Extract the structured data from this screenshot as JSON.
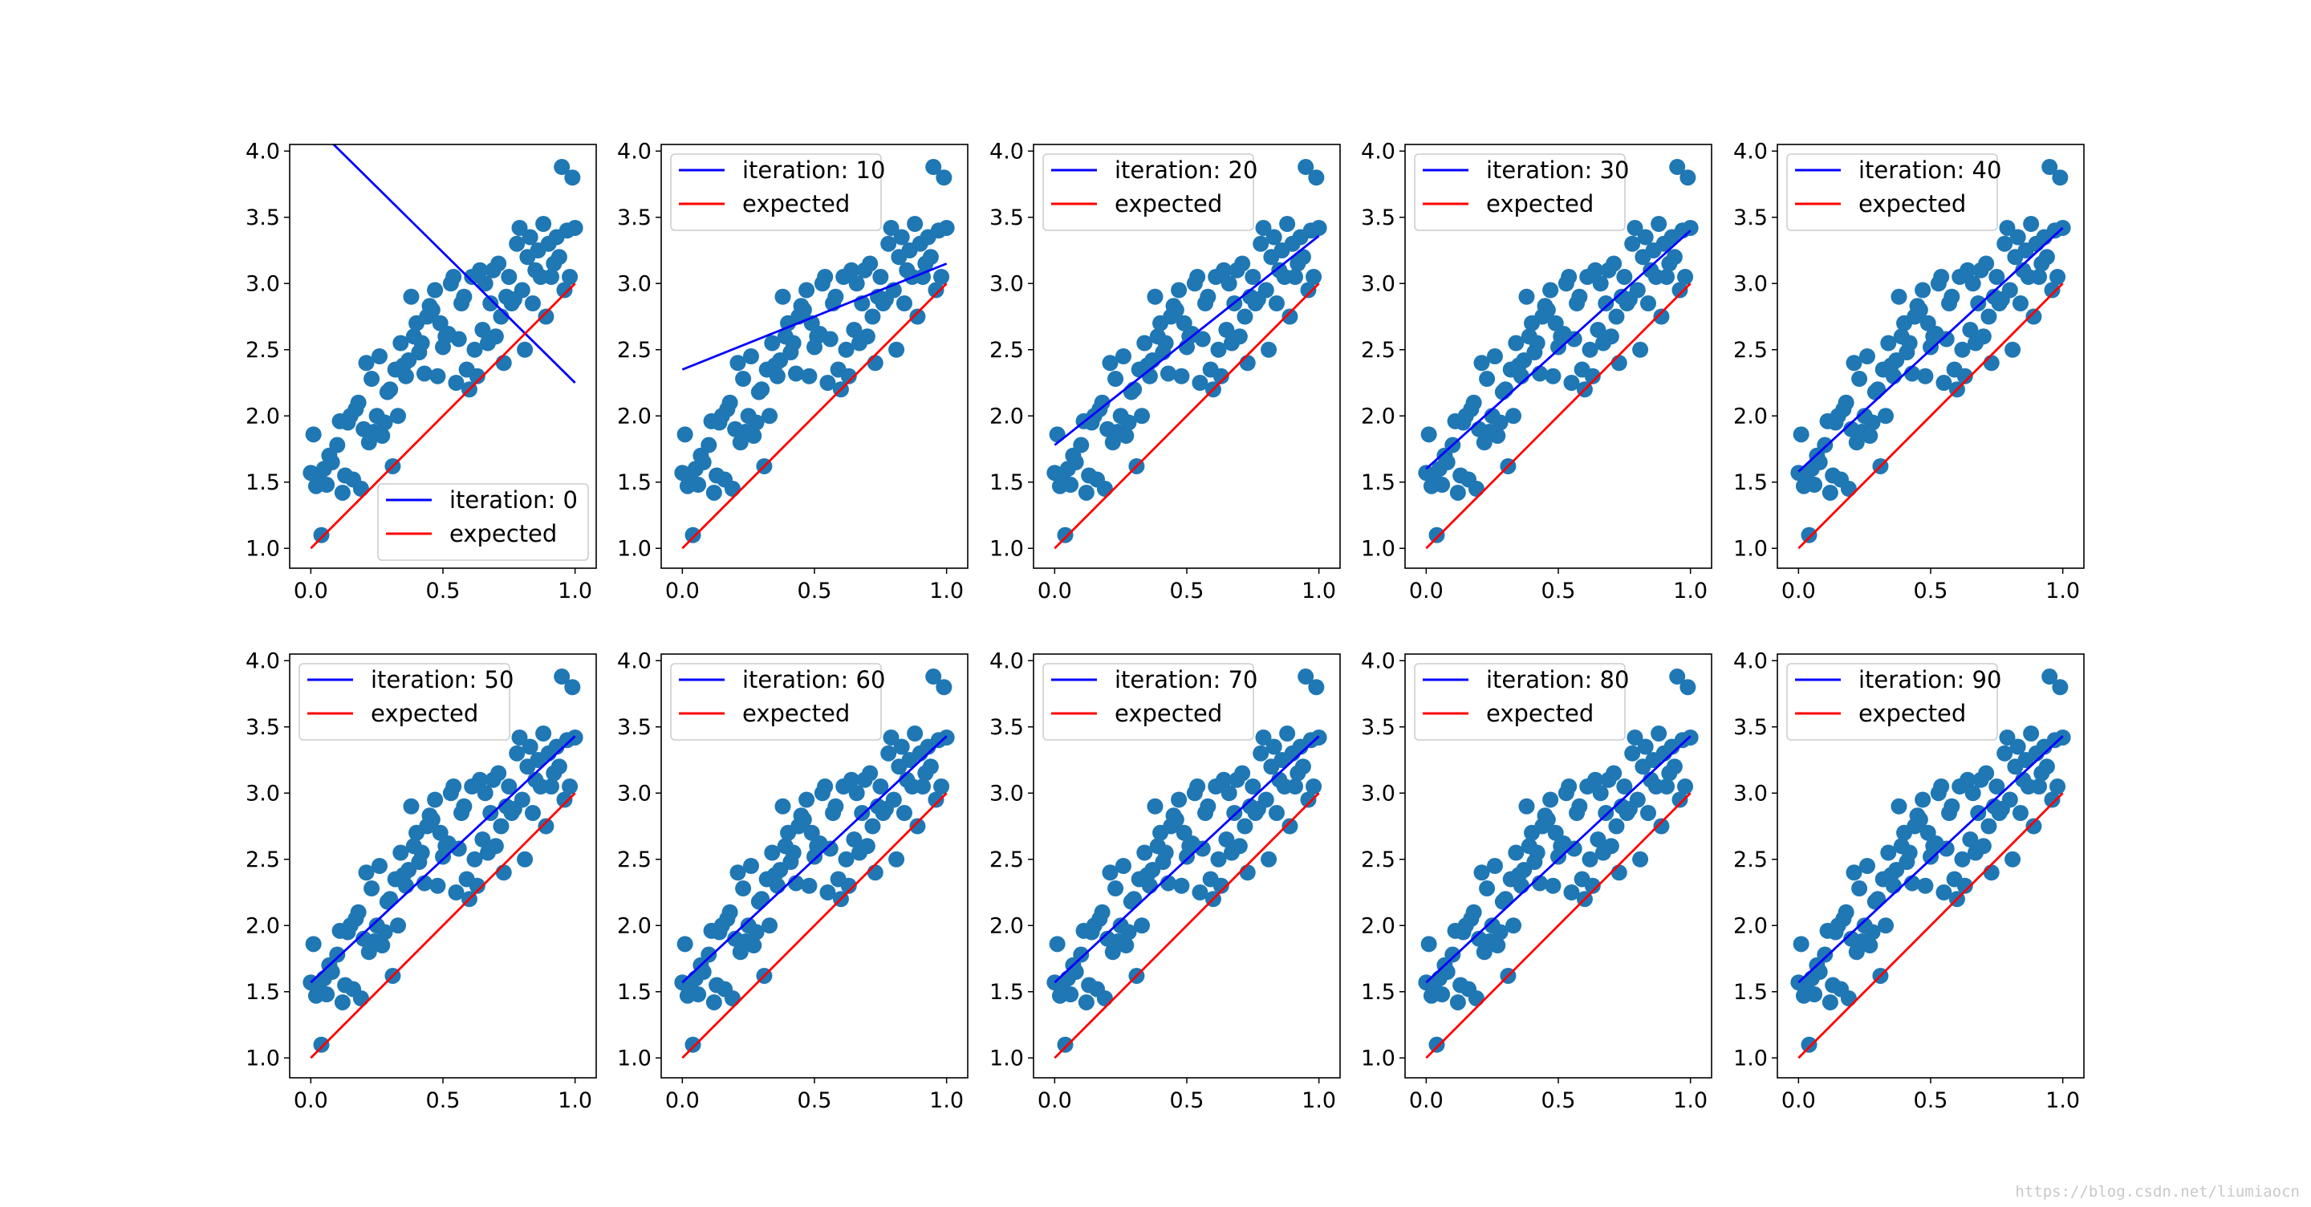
{
  "chart_data": {
    "type": "scatter",
    "layout": "2 rows x 5 columns of subplots",
    "colors": {
      "points": "#1f77b4",
      "fit": "#0000ff",
      "expected": "#ff0000",
      "axes": "#000000"
    },
    "xlim": [
      -0.08,
      1.08
    ],
    "ylim": [
      0.85,
      4.05
    ],
    "xticks": [
      0.0,
      0.5,
      1.0
    ],
    "xtick_labels": [
      "0.0",
      "0.5",
      "1.0"
    ],
    "yticks": [
      1.0,
      1.5,
      2.0,
      2.5,
      3.0,
      3.5,
      4.0
    ],
    "ytick_labels": [
      "1.0",
      "1.5",
      "2.0",
      "2.5",
      "3.0",
      "3.5",
      "4.0"
    ],
    "scatter_points": {
      "x": [
        0.0,
        0.01,
        0.02,
        0.03,
        0.04,
        0.05,
        0.06,
        0.07,
        0.08,
        0.1,
        0.11,
        0.12,
        0.13,
        0.14,
        0.15,
        0.16,
        0.17,
        0.18,
        0.19,
        0.2,
        0.21,
        0.22,
        0.23,
        0.24,
        0.25,
        0.26,
        0.27,
        0.28,
        0.29,
        0.3,
        0.31,
        0.32,
        0.33,
        0.34,
        0.35,
        0.36,
        0.37,
        0.38,
        0.39,
        0.4,
        0.41,
        0.42,
        0.43,
        0.44,
        0.45,
        0.46,
        0.47,
        0.48,
        0.49,
        0.5,
        0.51,
        0.52,
        0.53,
        0.54,
        0.55,
        0.56,
        0.57,
        0.58,
        0.59,
        0.6,
        0.61,
        0.62,
        0.63,
        0.64,
        0.65,
        0.66,
        0.67,
        0.68,
        0.69,
        0.7,
        0.71,
        0.72,
        0.73,
        0.74,
        0.75,
        0.76,
        0.77,
        0.78,
        0.79,
        0.8,
        0.81,
        0.82,
        0.83,
        0.84,
        0.85,
        0.86,
        0.87,
        0.88,
        0.89,
        0.9,
        0.91,
        0.92,
        0.93,
        0.94,
        0.95,
        0.96,
        0.97,
        0.98,
        0.99,
        1.0
      ],
      "y": [
        1.57,
        1.86,
        1.47,
        1.52,
        1.1,
        1.6,
        1.48,
        1.7,
        1.65,
        1.78,
        1.96,
        1.42,
        1.55,
        1.95,
        2.0,
        1.52,
        2.05,
        2.1,
        1.45,
        1.9,
        2.4,
        1.8,
        2.28,
        1.88,
        2.0,
        2.45,
        1.85,
        1.95,
        2.18,
        2.2,
        1.62,
        2.35,
        2.0,
        2.55,
        2.38,
        2.3,
        2.42,
        2.9,
        2.6,
        2.7,
        2.48,
        2.55,
        2.32,
        2.75,
        2.83,
        2.8,
        2.95,
        2.3,
        2.7,
        2.52,
        2.6,
        2.62,
        3.0,
        3.05,
        2.25,
        2.58,
        2.85,
        2.9,
        2.35,
        2.2,
        3.05,
        2.5,
        2.3,
        3.1,
        2.65,
        3.0,
        2.55,
        2.85,
        3.1,
        2.6,
        3.15,
        2.75,
        2.4,
        2.9,
        3.05,
        2.85,
        2.88,
        3.3,
        3.42,
        2.95,
        2.5,
        3.2,
        3.35,
        2.85,
        3.1,
        3.25,
        3.05,
        3.45,
        2.75,
        3.3,
        3.05,
        3.15,
        3.35,
        3.2,
        3.88,
        2.95,
        3.4,
        3.05,
        3.8,
        3.42
      ]
    },
    "subplots": [
      {
        "legend_label": "iteration: 0",
        "expected_label": "expected",
        "legend_position": "lower-right",
        "fit_line": {
          "x": [
            0.0,
            1.0
          ],
          "y": [
            4.22,
            2.25
          ]
        },
        "expected_line": {
          "x": [
            0.0,
            1.0
          ],
          "y": [
            1.0,
            3.0
          ]
        }
      },
      {
        "legend_label": "iteration: 10",
        "expected_label": "expected",
        "legend_position": "upper-left",
        "fit_line": {
          "x": [
            0.0,
            1.0
          ],
          "y": [
            2.35,
            3.15
          ]
        },
        "expected_line": {
          "x": [
            0.0,
            1.0
          ],
          "y": [
            1.0,
            3.0
          ]
        }
      },
      {
        "legend_label": "iteration: 20",
        "expected_label": "expected",
        "legend_position": "upper-left",
        "fit_line": {
          "x": [
            0.0,
            1.0
          ],
          "y": [
            1.78,
            3.36
          ]
        },
        "expected_line": {
          "x": [
            0.0,
            1.0
          ],
          "y": [
            1.0,
            3.0
          ]
        }
      },
      {
        "legend_label": "iteration: 30",
        "expected_label": "expected",
        "legend_position": "upper-left",
        "fit_line": {
          "x": [
            0.0,
            1.0
          ],
          "y": [
            1.6,
            3.4
          ]
        },
        "expected_line": {
          "x": [
            0.0,
            1.0
          ],
          "y": [
            1.0,
            3.0
          ]
        }
      },
      {
        "legend_label": "iteration: 40",
        "expected_label": "expected",
        "legend_position": "upper-left",
        "fit_line": {
          "x": [
            0.0,
            1.0
          ],
          "y": [
            1.58,
            3.42
          ]
        },
        "expected_line": {
          "x": [
            0.0,
            1.0
          ],
          "y": [
            1.0,
            3.0
          ]
        }
      },
      {
        "legend_label": "iteration: 50",
        "expected_label": "expected",
        "legend_position": "upper-left",
        "fit_line": {
          "x": [
            0.0,
            1.0
          ],
          "y": [
            1.57,
            3.43
          ]
        },
        "expected_line": {
          "x": [
            0.0,
            1.0
          ],
          "y": [
            1.0,
            3.0
          ]
        }
      },
      {
        "legend_label": "iteration: 60",
        "expected_label": "expected",
        "legend_position": "upper-left",
        "fit_line": {
          "x": [
            0.0,
            1.0
          ],
          "y": [
            1.57,
            3.43
          ]
        },
        "expected_line": {
          "x": [
            0.0,
            1.0
          ],
          "y": [
            1.0,
            3.0
          ]
        }
      },
      {
        "legend_label": "iteration: 70",
        "expected_label": "expected",
        "legend_position": "upper-left",
        "fit_line": {
          "x": [
            0.0,
            1.0
          ],
          "y": [
            1.57,
            3.43
          ]
        },
        "expected_line": {
          "x": [
            0.0,
            1.0
          ],
          "y": [
            1.0,
            3.0
          ]
        }
      },
      {
        "legend_label": "iteration: 80",
        "expected_label": "expected",
        "legend_position": "upper-left",
        "fit_line": {
          "x": [
            0.0,
            1.0
          ],
          "y": [
            1.57,
            3.43
          ]
        },
        "expected_line": {
          "x": [
            0.0,
            1.0
          ],
          "y": [
            1.0,
            3.0
          ]
        }
      },
      {
        "legend_label": "iteration: 90",
        "expected_label": "expected",
        "legend_position": "upper-left",
        "fit_line": {
          "x": [
            0.0,
            1.0
          ],
          "y": [
            1.57,
            3.43
          ]
        },
        "expected_line": {
          "x": [
            0.0,
            1.0
          ],
          "y": [
            1.0,
            3.0
          ]
        }
      }
    ]
  },
  "watermark": "https://blog.csdn.net/liumiaocn"
}
